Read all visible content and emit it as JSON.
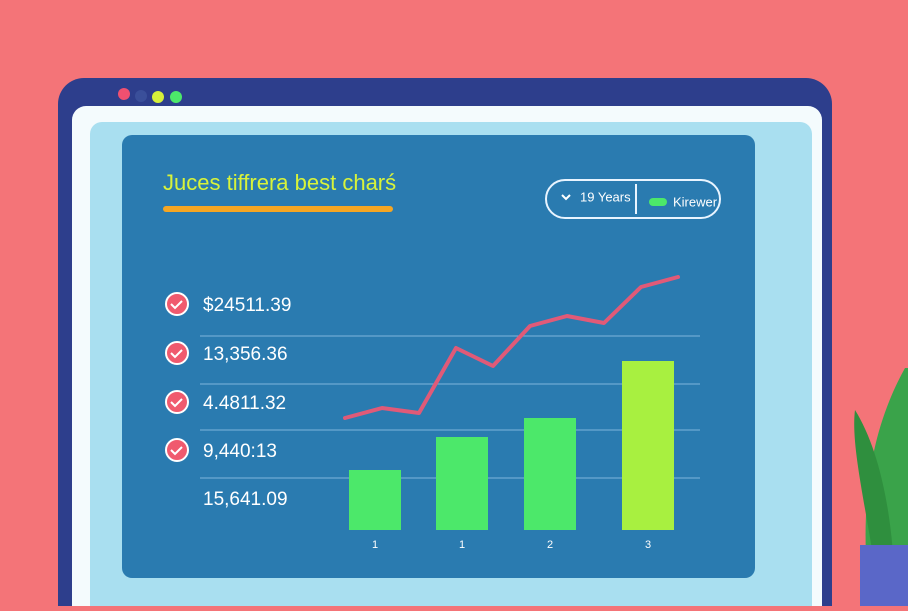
{
  "header": {
    "title": "Juces tiffrera best charś"
  },
  "controls": {
    "period": "19 Years",
    "toggle": "Kirewer"
  },
  "list": [
    "$24511.39",
    "13,356.36",
    "4.4811.32",
    "9,440:13",
    "15,641.09"
  ],
  "chart_data": {
    "type": "bar",
    "categories": [
      "1",
      "1",
      "2",
      "3"
    ],
    "values": [
      60,
      93,
      112,
      169
    ],
    "colors": [
      "#4ce86a",
      "#4ce86a",
      "#4ce86a",
      "#a8f040"
    ],
    "line": {
      "color": "#e05a78",
      "values": [
        112,
        122,
        117,
        182,
        164,
        204,
        214,
        207,
        243,
        253
      ]
    },
    "ylim": [
      0,
      260
    ]
  }
}
